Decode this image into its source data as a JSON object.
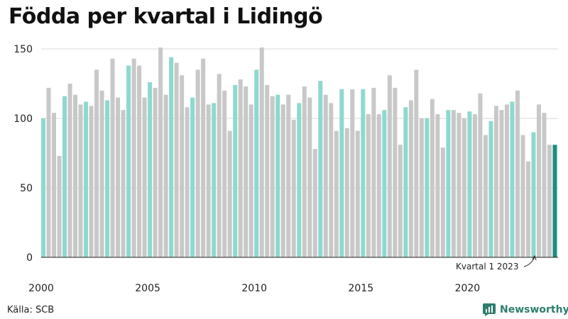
{
  "title": "Födda per kvartal i Lidingö",
  "source": "Källa: SCB",
  "brand": {
    "name": "Newsworthy",
    "icon": "newsworthy-chart-icon"
  },
  "colors": {
    "q1": "#8ed8cf",
    "other": "#c8c8c8",
    "latest": "#1a8f80",
    "grid": "#d9d9d9",
    "axis": "#222222"
  },
  "annotation": "Kvartal 1 2023",
  "chart_data": {
    "type": "bar",
    "x_ticks": [
      "2000",
      "2005",
      "2010",
      "2015",
      "2020"
    ],
    "y_ticks": [
      0,
      50,
      100,
      150
    ],
    "ylim": [
      0,
      150
    ],
    "start_year": 2000,
    "grid": true,
    "highlight": "Q1 bars in teal, latest bar dark teal",
    "values": [
      100,
      122,
      104,
      73,
      116,
      125,
      117,
      110,
      112,
      109,
      135,
      120,
      113,
      143,
      115,
      106,
      138,
      143,
      138,
      115,
      126,
      122,
      151,
      117,
      144,
      140,
      131,
      108,
      115,
      135,
      143,
      110,
      111,
      132,
      120,
      91,
      124,
      128,
      123,
      110,
      135,
      151,
      124,
      116,
      117,
      110,
      117,
      99,
      111,
      123,
      115,
      78,
      127,
      117,
      111,
      91,
      121,
      93,
      121,
      91,
      121,
      103,
      122,
      103,
      106,
      131,
      122,
      81,
      108,
      113,
      135,
      100,
      100,
      114,
      103,
      79,
      106,
      106,
      104,
      100,
      105,
      103,
      118,
      88,
      98,
      109,
      106,
      110,
      112,
      120,
      88,
      69,
      90,
      110,
      104,
      81,
      81
    ]
  }
}
